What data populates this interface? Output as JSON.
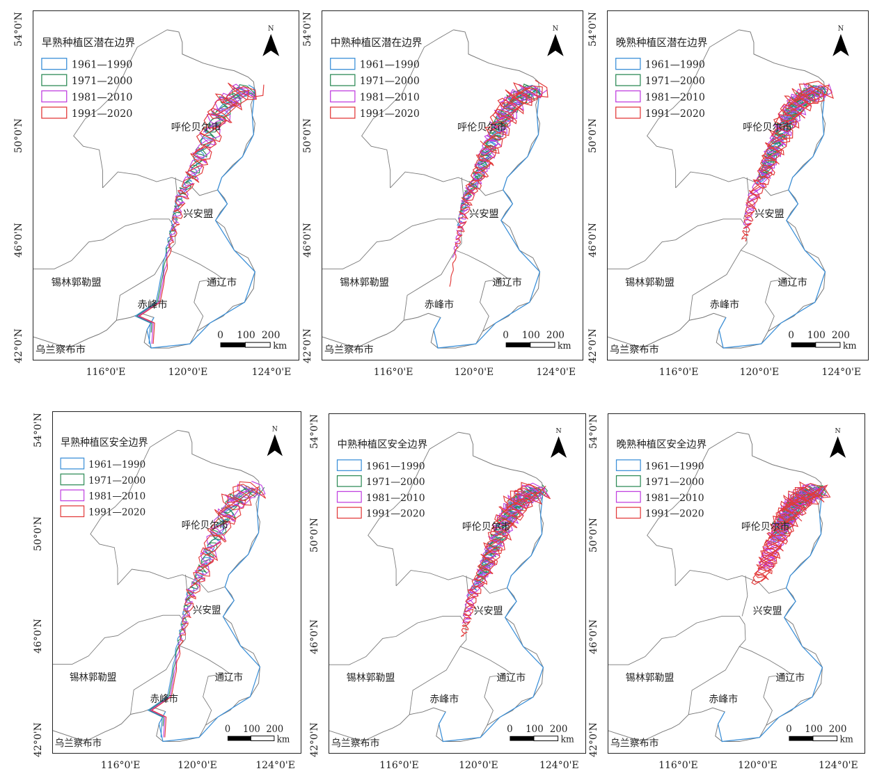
{
  "legend": [
    {
      "label": "1961—1990",
      "color": "#3a8fd8"
    },
    {
      "label": "1971—2000",
      "color": "#2e8b57"
    },
    {
      "label": "1981—2010",
      "color": "#c040e0"
    },
    {
      "label": "1991—2020",
      "color": "#e23a3a"
    }
  ],
  "north_label": "N",
  "scale": {
    "labels": [
      "0",
      "100",
      "200"
    ],
    "unit": "km"
  },
  "lat_ticks": [
    "54°0'N",
    "50°0'N",
    "46°0'N",
    "42°0'N"
  ],
  "lon_ticks": [
    "116°0'E",
    "120°0'E",
    "124°0'E"
  ],
  "cities": [
    "呼伦贝尔市",
    "兴安盟",
    "锡林郭勒盟",
    "通辽市",
    "赤峰市",
    "乌兰察布市"
  ],
  "panels": [
    {
      "title": "早熟种植区潜在边界"
    },
    {
      "title": "中熟种植区潜在边界"
    },
    {
      "title": "晚熟种植区潜在边界"
    },
    {
      "title": "早熟种植区安全边界"
    },
    {
      "title": "中熟种植区安全边界"
    },
    {
      "title": "晚熟种植区安全边界"
    }
  ]
}
